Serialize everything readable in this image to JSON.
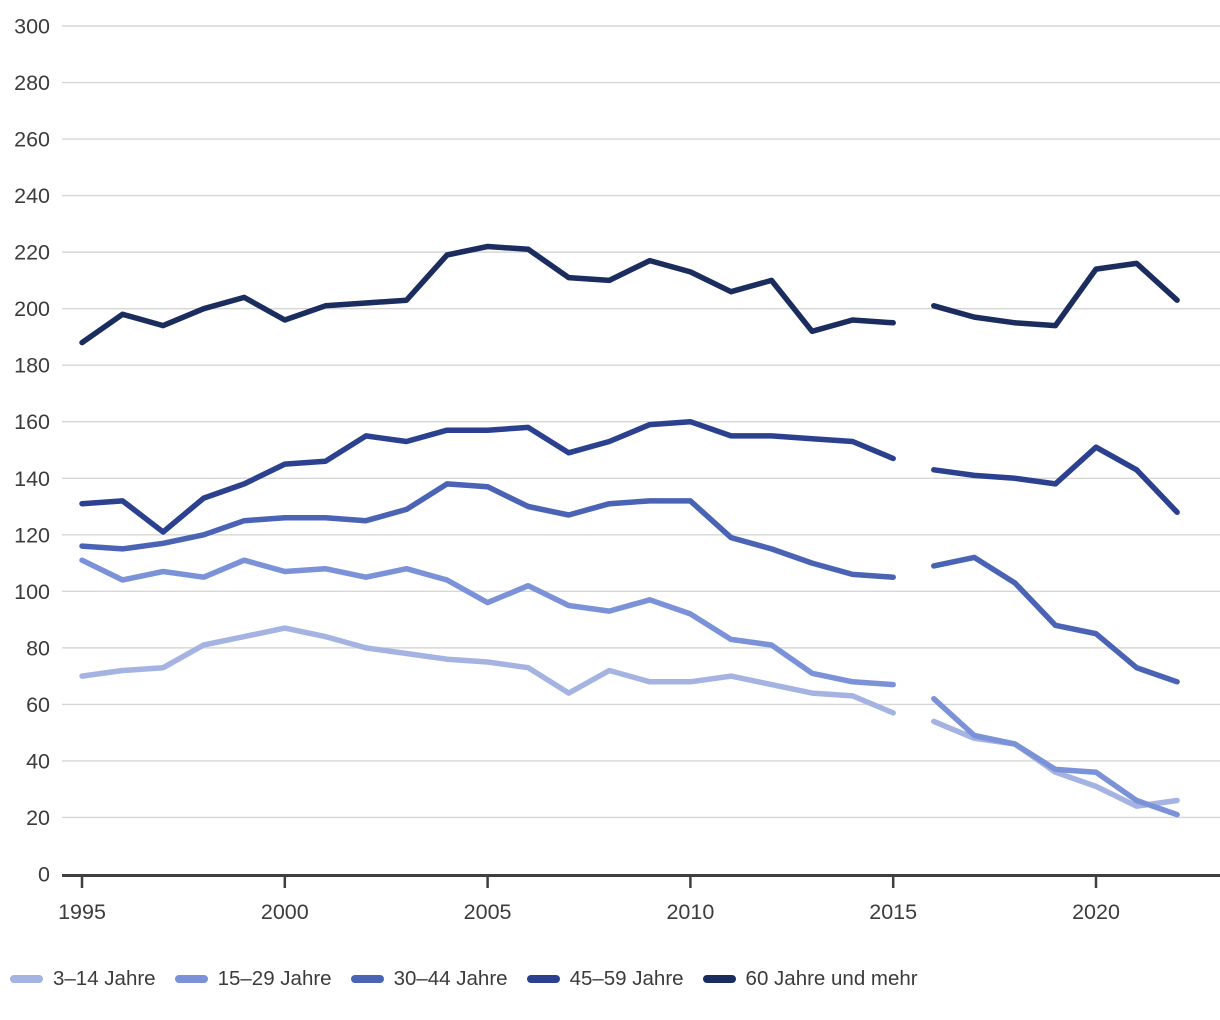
{
  "chart_data": {
    "type": "line",
    "title": "",
    "xlabel": "",
    "ylabel": "",
    "x": [
      1995,
      1996,
      1997,
      1998,
      1999,
      2000,
      2001,
      2002,
      2003,
      2004,
      2005,
      2006,
      2007,
      2008,
      2009,
      2010,
      2011,
      2012,
      2013,
      2014,
      2015,
      2016,
      2017,
      2018,
      2019,
      2020,
      2021,
      2022
    ],
    "segments": [
      [
        1995,
        2015
      ],
      [
        2016,
        2022
      ]
    ],
    "series": [
      {
        "name": "3–14 Jahre",
        "color": "#a5b3e3",
        "values": [
          70,
          72,
          73,
          81,
          84,
          87,
          84,
          80,
          78,
          76,
          75,
          73,
          64,
          72,
          68,
          68,
          70,
          67,
          64,
          63,
          57,
          54,
          48,
          46,
          36,
          31,
          24,
          26
        ]
      },
      {
        "name": "15–29 Jahre",
        "color": "#7b92d8",
        "values": [
          111,
          104,
          107,
          105,
          111,
          107,
          108,
          105,
          108,
          104,
          96,
          102,
          95,
          93,
          97,
          92,
          83,
          81,
          71,
          68,
          67,
          62,
          49,
          46,
          37,
          36,
          26,
          21
        ]
      },
      {
        "name": "30–44 Jahre",
        "color": "#4a63b4",
        "values": [
          116,
          115,
          117,
          120,
          125,
          126,
          126,
          125,
          129,
          138,
          137,
          130,
          127,
          131,
          132,
          132,
          119,
          115,
          110,
          106,
          105,
          109,
          112,
          103,
          88,
          85,
          73,
          68
        ]
      },
      {
        "name": "45–59 Jahre",
        "color": "#2b4190",
        "values": [
          131,
          132,
          121,
          133,
          138,
          145,
          146,
          155,
          153,
          157,
          157,
          158,
          149,
          153,
          159,
          160,
          155,
          155,
          154,
          153,
          147,
          143,
          141,
          140,
          138,
          151,
          143,
          128
        ]
      },
      {
        "name": "60 Jahre und mehr",
        "color": "#1b2c5f",
        "values": [
          188,
          198,
          194,
          200,
          204,
          196,
          201,
          202,
          203,
          219,
          222,
          221,
          211,
          210,
          217,
          213,
          206,
          210,
          192,
          196,
          195,
          201,
          197,
          195,
          194,
          214,
          216,
          203
        ]
      }
    ],
    "ylim": [
      0,
      300
    ],
    "y_ticks": [
      0,
      20,
      40,
      60,
      80,
      100,
      120,
      140,
      160,
      180,
      200,
      220,
      240,
      260,
      280,
      300
    ],
    "y_tick_labels": [
      "0",
      "20",
      "40",
      "60",
      "80",
      "100",
      "120",
      "140",
      "160",
      "180",
      "200",
      "220",
      "240",
      "260",
      "280",
      "300"
    ],
    "x_ticks": [
      1995,
      2000,
      2005,
      2010,
      2015,
      2020
    ],
    "x_tick_labels": [
      "1995",
      "2000",
      "2005",
      "2010",
      "2015",
      "2020"
    ],
    "grid": "horizontal",
    "legend_position": "bottom-left"
  },
  "style": {
    "background": "#ffffff",
    "gridline_color": "#d6d6d6",
    "axis_color": "#3f3f3f",
    "label_color": "#3c3c3c",
    "line_width": 5.5
  }
}
